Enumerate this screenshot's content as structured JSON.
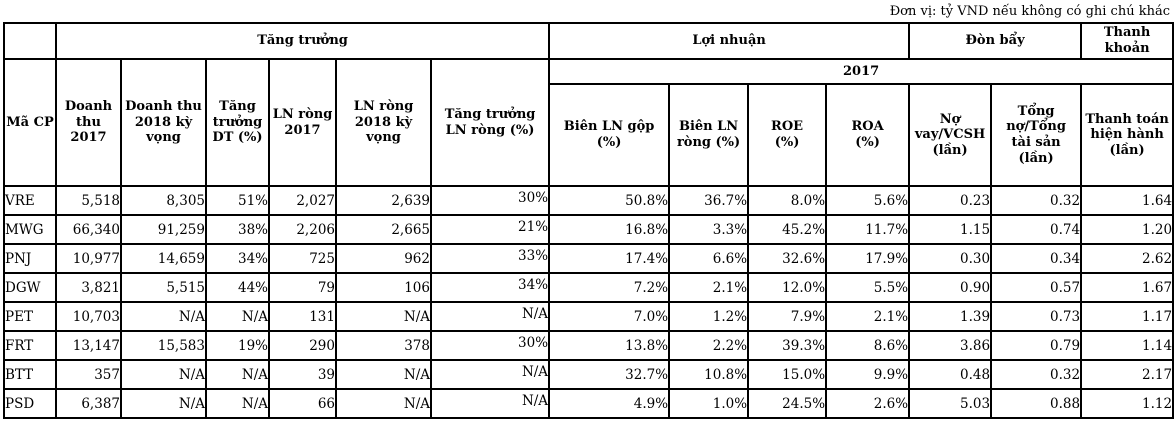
{
  "unit_note": "Đơn vị: tỷ VND nếu không có ghi chú khác",
  "table": {
    "groups": {
      "growth": "Tăng trưởng",
      "profit": "Lợi nhuận",
      "leverage": "Đòn bẩy",
      "liquidity": "Thanh\nkhoản",
      "year": "2017"
    },
    "columns": [
      "Mã CP",
      "Doanh\nthu 2017",
      "Doanh thu\n2018 kỳ\nvọng",
      "Tăng\ntrưởng\nDT (%)",
      "LN ròng\n2017",
      "LN ròng\n2018 kỳ\nvọng",
      "Tăng trưởng\nLN ròng (%)",
      "Biên LN gộp (%)",
      "Biên LN\nròng (%)",
      "ROE\n(%)",
      "ROA\n(%)",
      "Nợ\nvay/VCSH\n(lần)",
      "Tổng\nnợ/Tổng\ntài sản\n(lần)",
      "Thanh toán\nhiện hành\n(lần)"
    ],
    "rows": [
      [
        "VRE",
        "5,518",
        "8,305",
        "51%",
        "2,027",
        "2,639",
        "30%",
        "50.8%",
        "36.7%",
        "8.0%",
        "5.6%",
        "0.23",
        "0.32",
        "1.64"
      ],
      [
        "MWG",
        "66,340",
        "91,259",
        "38%",
        "2,206",
        "2,665",
        "21%",
        "16.8%",
        "3.3%",
        "45.2%",
        "11.7%",
        "1.15",
        "0.74",
        "1.20"
      ],
      [
        "PNJ",
        "10,977",
        "14,659",
        "34%",
        "725",
        "962",
        "33%",
        "17.4%",
        "6.6%",
        "32.6%",
        "17.9%",
        "0.30",
        "0.34",
        "2.62"
      ],
      [
        "DGW",
        "3,821",
        "5,515",
        "44%",
        "79",
        "106",
        "34%",
        "7.2%",
        "2.1%",
        "12.0%",
        "5.5%",
        "0.90",
        "0.57",
        "1.67"
      ],
      [
        "PET",
        "10,703",
        "N/A",
        "N/A",
        "131",
        "N/A",
        "N/A",
        "7.0%",
        "1.2%",
        "7.9%",
        "2.1%",
        "1.39",
        "0.73",
        "1.17"
      ],
      [
        "FRT",
        "13,147",
        "15,583",
        "19%",
        "290",
        "378",
        "30%",
        "13.8%",
        "2.2%",
        "39.3%",
        "8.6%",
        "3.86",
        "0.79",
        "1.14"
      ],
      [
        "BTT",
        "357",
        "N/A",
        "N/A",
        "39",
        "N/A",
        "N/A",
        "32.7%",
        "10.8%",
        "15.0%",
        "9.9%",
        "0.48",
        "0.32",
        "2.17"
      ],
      [
        "PSD",
        "6,387",
        "N/A",
        "N/A",
        "66",
        "N/A",
        "N/A",
        "4.9%",
        "1.0%",
        "24.5%",
        "2.6%",
        "5.03",
        "0.88",
        "1.12"
      ]
    ]
  }
}
